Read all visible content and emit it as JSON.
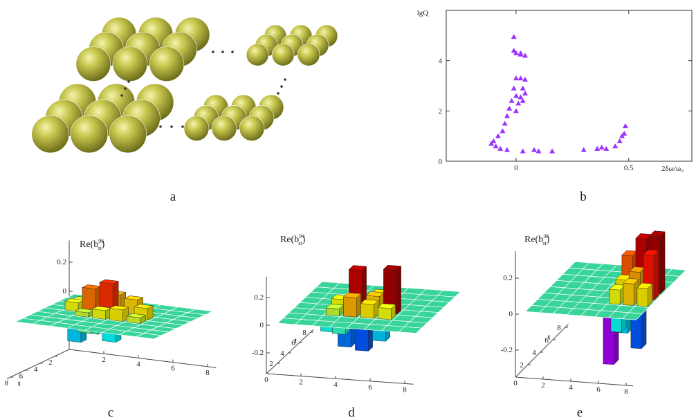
{
  "panel_labels": [
    "a",
    "b",
    "c",
    "d",
    "e"
  ],
  "chart_data": [
    {
      "type": "scatter",
      "y_label": "lgQ",
      "x_label": "2δω/ω₀",
      "xlim": [
        -0.31,
        0.78
      ],
      "ylim": [
        0,
        6
      ],
      "xticks": [
        0,
        0.5
      ],
      "yticks": [
        0,
        2,
        4
      ],
      "color": "#9933ff",
      "marker": "triangle",
      "x": [
        -0.01,
        0,
        0.02,
        0.04,
        0.02,
        -0.01,
        0,
        0.02,
        0.04,
        -0.01,
        0.03,
        0.04,
        0,
        0.02,
        -0.02,
        0.01,
        0.03,
        -0.03,
        0,
        -0.04,
        -0.05,
        -0.06,
        -0.08,
        -0.1,
        -0.11,
        -0.09,
        -0.07,
        -0.04,
        0.03,
        0.08,
        0.1,
        0.16,
        0.3,
        0.36,
        0.38,
        0.4,
        0.44,
        0.46,
        0.48,
        0.485,
        0.47
      ],
      "values": [
        4.95,
        4.3,
        4.3,
        4.2,
        4.25,
        4.4,
        3.3,
        3.3,
        3.25,
        2.9,
        2.9,
        2.7,
        2.6,
        2.55,
        2.4,
        2.3,
        2.4,
        2.1,
        2,
        1.8,
        1.5,
        1.2,
        1,
        0.8,
        0.7,
        0.6,
        0.5,
        0.45,
        0.4,
        0.45,
        0.4,
        0.4,
        0.45,
        0.5,
        0.55,
        0.5,
        0.6,
        0.8,
        1.1,
        1.4,
        1
      ]
    },
    {
      "type": "bar3d",
      "title": [
        "Re(b",
        "96",
        "st",
        ")"
      ],
      "t_label": "t",
      "zlim": [
        -0.4,
        0.35
      ],
      "zticks": [
        0,
        0.2
      ],
      "sticks": [
        2,
        4,
        6,
        8
      ],
      "tticks": [
        2,
        4,
        6,
        8
      ],
      "bars": {
        "s": [
          4,
          3,
          3,
          5,
          4,
          2,
          5,
          4,
          3,
          6,
          2,
          6,
          5,
          4,
          3,
          5,
          4
        ],
        "t": [
          4,
          4,
          3,
          3,
          3,
          4,
          5,
          5,
          5,
          5,
          3,
          4,
          4,
          6,
          6,
          6,
          7
        ],
        "values": [
          0.22,
          0.17,
          0.1,
          0.1,
          0.12,
          0.06,
          0.08,
          0.06,
          0.03,
          0.04,
          0.05,
          0.08,
          -0.1,
          -0.08,
          -0.15,
          -0.12,
          -0.05
        ]
      }
    },
    {
      "type": "bar3d",
      "title": [
        "Re(b",
        "94",
        "st",
        ")"
      ],
      "t_label": "t",
      "zlim": [
        -0.35,
        0.35
      ],
      "zticks": [
        -0.2,
        0,
        0.2
      ],
      "sticks": [
        0,
        2,
        4,
        6,
        8
      ],
      "tticks": [
        2,
        4,
        6,
        8
      ],
      "bars": {
        "s": [
          4,
          6,
          4,
          5,
          5,
          3,
          6,
          3,
          4,
          5,
          4,
          5,
          3,
          6,
          4
        ],
        "t": [
          4,
          4,
          3,
          4,
          3,
          4,
          3,
          3,
          5,
          5,
          2,
          2,
          2,
          2,
          1
        ],
        "values": [
          0.3,
          0.32,
          0.14,
          0.12,
          0.1,
          0.08,
          0.08,
          0.05,
          0.06,
          0.1,
          -0.18,
          -0.2,
          -0.08,
          -0.12,
          -0.05
        ]
      }
    },
    {
      "type": "bar3d",
      "title": [
        "Re(b",
        "36",
        "st",
        ")"
      ],
      "t_label": "t",
      "zlim": [
        -0.35,
        0.35
      ],
      "zticks": [
        -0.2,
        0,
        0.2
      ],
      "sticks": [
        0,
        2,
        4,
        6,
        8
      ],
      "tticks": [
        2,
        4,
        6,
        8
      ],
      "bars": {
        "s": [
          7,
          8,
          6,
          8,
          7,
          6,
          7,
          8,
          6,
          6,
          7,
          8,
          7
        ],
        "t": [
          5,
          5,
          5,
          4,
          4,
          4,
          3,
          3,
          3,
          2,
          2,
          2,
          1
        ],
        "values": [
          0.3,
          0.32,
          0.2,
          0.25,
          0.15,
          0.1,
          0.12,
          0.1,
          0.08,
          -0.3,
          -0.12,
          -0.2,
          -0.08
        ]
      }
    }
  ]
}
